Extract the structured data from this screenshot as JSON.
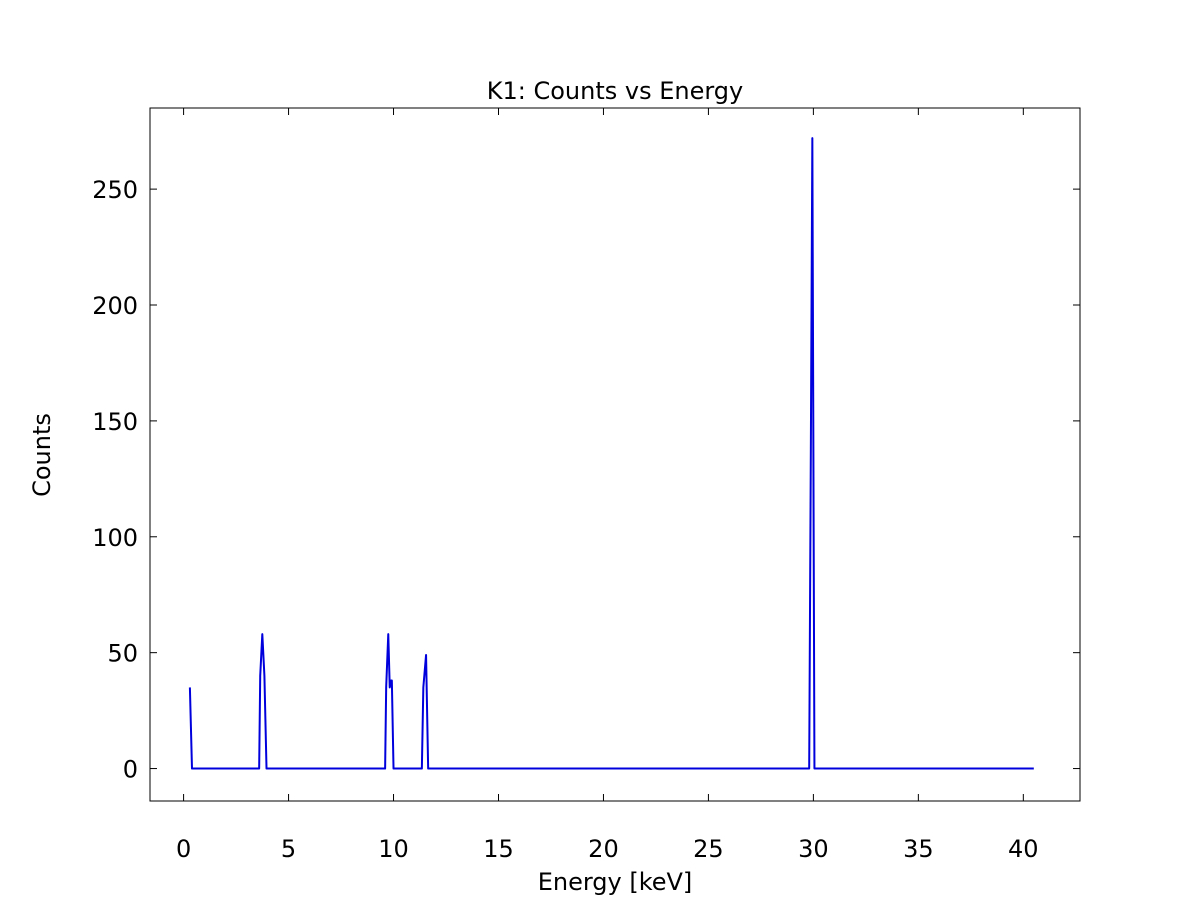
{
  "chart_data": {
    "type": "line",
    "title": "K1: Counts vs Energy",
    "xlabel": "Energy [keV]",
    "ylabel": "Counts",
    "xlim": [
      -1.6,
      42.7
    ],
    "ylim": [
      -14,
      285
    ],
    "xticks": [
      0,
      5,
      10,
      15,
      20,
      25,
      30,
      35,
      40
    ],
    "yticks": [
      0,
      50,
      100,
      150,
      200,
      250
    ],
    "grid": false,
    "legend": "none",
    "series": [
      {
        "color": "#0000dd",
        "x": [
          0.3,
          0.4,
          3.6,
          3.65,
          3.75,
          3.85,
          3.95,
          9.6,
          9.65,
          9.75,
          9.82,
          9.88,
          9.92,
          10.0,
          11.35,
          11.42,
          11.55,
          11.65,
          29.8,
          29.88,
          29.95,
          30.05,
          40.5
        ],
        "y": [
          35,
          0,
          0,
          40,
          58,
          40,
          0,
          0,
          35,
          58,
          35,
          38,
          38,
          0,
          0,
          35,
          49,
          0,
          0,
          140,
          272,
          0,
          0
        ]
      }
    ]
  }
}
